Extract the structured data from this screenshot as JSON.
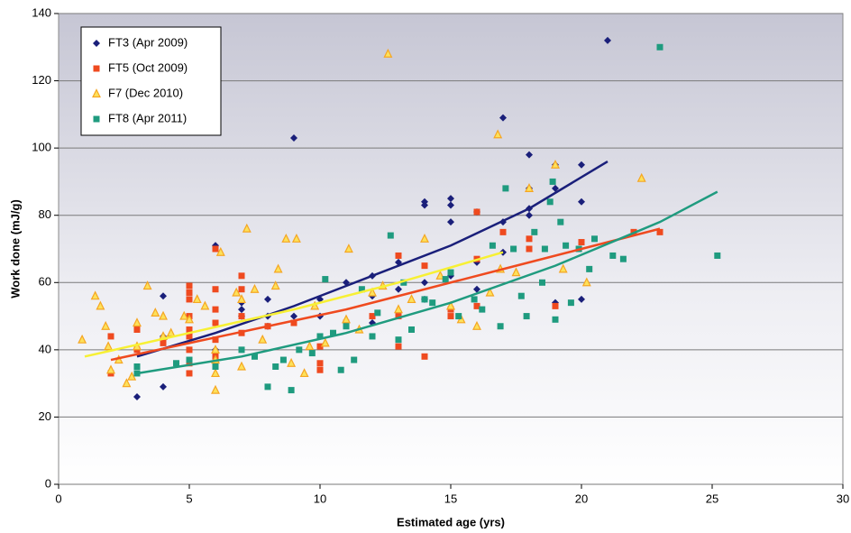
{
  "chart_data": {
    "type": "scatter",
    "x_label": "Estimated age (yrs)",
    "y_label": "Work done (mJ/g)",
    "xlim": [
      0,
      30
    ],
    "xticks": [
      0,
      5,
      10,
      15,
      20,
      25,
      30
    ],
    "ylim": [
      0,
      140
    ],
    "yticks": [
      0,
      20,
      40,
      60,
      80,
      100,
      120,
      140
    ],
    "grid": true,
    "legend": "upper-left",
    "series": [
      {
        "name": "FT3 (Apr 2009)",
        "color": "#1a1f7a",
        "marker": "diamond",
        "x": [
          3,
          4,
          4,
          4,
          6,
          6,
          7,
          7,
          7,
          8,
          8,
          8,
          9,
          9,
          10,
          10,
          11,
          12,
          12,
          12,
          13,
          13,
          14,
          14,
          14,
          14,
          15,
          15,
          15,
          15,
          16,
          16,
          16,
          17,
          17,
          18,
          18,
          18,
          18,
          19,
          19,
          19,
          20,
          20,
          20,
          21,
          17
        ],
        "y": [
          26,
          29,
          56,
          44,
          71,
          40,
          52,
          50,
          54,
          55,
          50,
          47,
          103,
          50,
          55,
          50,
          60,
          62,
          56,
          48,
          66,
          58,
          84,
          83,
          60,
          55,
          85,
          83,
          78,
          62,
          81,
          66,
          58,
          109,
          78,
          98,
          88,
          82,
          80,
          95,
          88,
          54,
          95,
          84,
          55,
          132,
          69
        ],
        "trend_x": [
          3,
          6,
          9,
          12,
          15,
          18,
          21
        ],
        "trend_y": [
          38,
          45,
          53,
          62,
          71,
          82,
          96
        ]
      },
      {
        "name": "FT5 (Oct 2009)",
        "color": "#ef4a1f",
        "marker": "square",
        "x": [
          2,
          2,
          3,
          3,
          3,
          4,
          5,
          5,
          5,
          5,
          5,
          5,
          5,
          5,
          5,
          6,
          6,
          6,
          6,
          6,
          6,
          6,
          7,
          7,
          7,
          7,
          8,
          9,
          10,
          10,
          10,
          11,
          12,
          13,
          13,
          13,
          14,
          14,
          15,
          15,
          16,
          16,
          16,
          17,
          18,
          18,
          19,
          20,
          22,
          23
        ],
        "y": [
          33,
          44,
          46,
          40,
          35,
          42,
          59,
          57,
          55,
          50,
          46,
          44,
          40,
          36,
          33,
          70,
          58,
          52,
          48,
          43,
          38,
          35,
          62,
          58,
          50,
          45,
          47,
          48,
          41,
          36,
          34,
          48,
          50,
          68,
          50,
          41,
          65,
          38,
          52,
          50,
          81,
          67,
          53,
          75,
          73,
          70,
          53,
          72,
          75,
          75
        ],
        "trend_x": [
          2,
          5,
          8,
          11,
          14,
          17,
          20,
          23
        ],
        "trend_y": [
          37,
          42,
          47,
          52,
          58,
          64,
          70,
          76
        ]
      },
      {
        "name": "F7 (Dec 2010)",
        "color": "#f5a623",
        "marker": "triangle",
        "x": [
          0.9,
          1.4,
          1.6,
          1.8,
          1.9,
          2,
          2.3,
          2.6,
          2.8,
          3,
          3,
          3.4,
          3.7,
          4,
          4,
          4.3,
          4.8,
          5,
          5.3,
          5.6,
          6,
          6,
          6,
          6,
          6.2,
          6.8,
          7,
          7,
          7.2,
          7.5,
          7.8,
          8.3,
          8.4,
          8.7,
          8.9,
          9.1,
          9.4,
          9.8,
          10.2,
          11,
          11.1,
          11.5,
          12,
          12.4,
          12.6,
          13,
          13.5,
          14,
          14.6,
          15,
          15.4,
          16,
          16.5,
          16.8,
          16.9,
          17.5,
          18,
          19,
          19.3,
          20.2,
          22.3,
          9.6
        ],
        "y": [
          43,
          56,
          53,
          47,
          41,
          34,
          37,
          30,
          32,
          48,
          41,
          59,
          51,
          50,
          44,
          45,
          50,
          49,
          55,
          53,
          40,
          37,
          33,
          28,
          69,
          57,
          55,
          35,
          76,
          58,
          43,
          59,
          64,
          73,
          36,
          73,
          33,
          53,
          42,
          49,
          70,
          46,
          57,
          59,
          128,
          52,
          55,
          73,
          62,
          53,
          49,
          47,
          57,
          104,
          64,
          63,
          88,
          95,
          64,
          60,
          91,
          41
        ],
        "trend_x": [
          1,
          5,
          9,
          13,
          17
        ],
        "trend_y": [
          38,
          45,
          52,
          60,
          69
        ]
      },
      {
        "name": "FT8 (Apr 2011)",
        "color": "#1f9b7f",
        "marker": "square",
        "x": [
          3,
          3,
          4.5,
          5,
          6,
          7,
          7.5,
          8,
          8.3,
          8.6,
          8.9,
          9.2,
          9.7,
          10,
          10.2,
          10.5,
          10.8,
          11,
          11.3,
          11.6,
          12,
          12.2,
          12.7,
          13,
          13.2,
          13.5,
          14,
          14.3,
          14.8,
          15,
          15.3,
          15.9,
          16.2,
          16.6,
          16.9,
          17.1,
          17.4,
          17.7,
          17.9,
          18.2,
          18.5,
          18.6,
          18.8,
          19,
          19.2,
          19.4,
          19.6,
          19.9,
          20.3,
          20.5,
          21.2,
          21.6,
          23,
          25.2,
          18.9
        ],
        "y": [
          35,
          33,
          36,
          37,
          35,
          40,
          38,
          29,
          35,
          37,
          28,
          40,
          39,
          44,
          61,
          45,
          34,
          47,
          37,
          58,
          44,
          51,
          74,
          43,
          60,
          46,
          55,
          54,
          61,
          63,
          50,
          55,
          52,
          71,
          47,
          88,
          70,
          56,
          50,
          75,
          60,
          70,
          84,
          49,
          78,
          71,
          54,
          70,
          64,
          73,
          68,
          67,
          130,
          68,
          90
        ],
        "trend_x": [
          3,
          7,
          11,
          15,
          19,
          23,
          25.2
        ],
        "trend_y": [
          33,
          38,
          45,
          54,
          65,
          78,
          87
        ]
      }
    ]
  }
}
